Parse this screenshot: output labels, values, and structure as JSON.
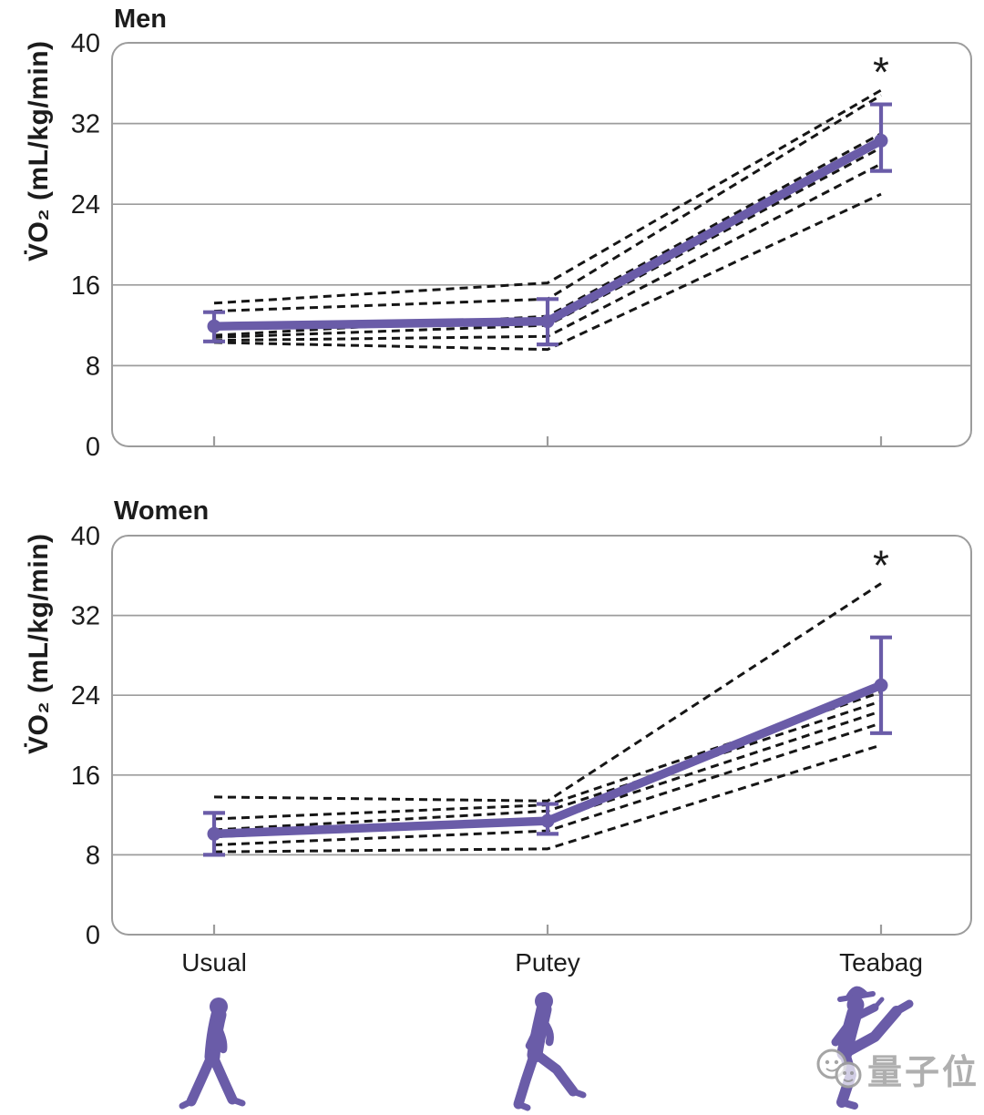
{
  "figure": {
    "titles": [
      "Men",
      "Women"
    ],
    "significance_marker": "*"
  },
  "watermark": {
    "label": "量子位",
    "logo_icon": "chat-bubbles-logo",
    "color": "#a9a9a9"
  },
  "colors": {
    "mean_line": "#6a5ca8",
    "individual_line": "#161616",
    "grid": "#9c9c9c",
    "text": "#1c1c1c",
    "silhouette": "#6a5ca8",
    "background": "#ffffff"
  },
  "chart_data": [
    {
      "type": "line",
      "title": "Men",
      "ylabel": "V̇O₂ (mL/kg/min)",
      "categories": [
        "Usual",
        "Putey",
        "Teabag"
      ],
      "ylim": [
        0,
        40
      ],
      "yticks": [
        0,
        8,
        16,
        24,
        32,
        40
      ],
      "grid": "horizontal",
      "legend": "none",
      "mean_series": {
        "values": [
          11.9,
          12.4,
          30.3
        ],
        "ci_low": [
          10.4,
          10.1,
          27.3
        ],
        "ci_high": [
          13.3,
          14.6,
          33.9
        ]
      },
      "individual_series": [
        {
          "values": [
            14.2,
            16.2,
            35.3
          ]
        },
        {
          "values": [
            13.4,
            14.6,
            34.8
          ]
        },
        {
          "values": [
            11.0,
            12.9,
            31.0
          ]
        },
        {
          "values": [
            10.8,
            12.0,
            29.6
          ]
        },
        {
          "values": [
            10.5,
            10.9,
            28.0
          ]
        },
        {
          "values": [
            10.3,
            9.6,
            25.0
          ]
        }
      ],
      "annotation": {
        "label": "*",
        "category": "Teabag"
      }
    },
    {
      "type": "line",
      "title": "Women",
      "ylabel": "V̇O₂ (mL/kg/min)",
      "categories": [
        "Usual",
        "Putey",
        "Teabag"
      ],
      "ylim": [
        0,
        40
      ],
      "yticks": [
        0,
        8,
        16,
        24,
        32,
        40
      ],
      "grid": "horizontal",
      "legend": "none",
      "mean_series": {
        "values": [
          10.1,
          11.4,
          25.0
        ],
        "ci_low": [
          8.0,
          10.1,
          20.2
        ],
        "ci_high": [
          12.2,
          13.1,
          29.8
        ]
      },
      "individual_series": [
        {
          "values": [
            13.8,
            13.4,
            35.2
          ]
        },
        {
          "values": [
            11.6,
            13.0,
            24.3
          ]
        },
        {
          "values": [
            10.5,
            12.4,
            23.4
          ]
        },
        {
          "values": [
            9.8,
            11.4,
            22.4
          ]
        },
        {
          "values": [
            9.0,
            10.4,
            21.2
          ]
        },
        {
          "values": [
            8.3,
            8.6,
            19.0
          ]
        }
      ],
      "annotation": {
        "label": "*",
        "category": "Teabag"
      }
    }
  ]
}
